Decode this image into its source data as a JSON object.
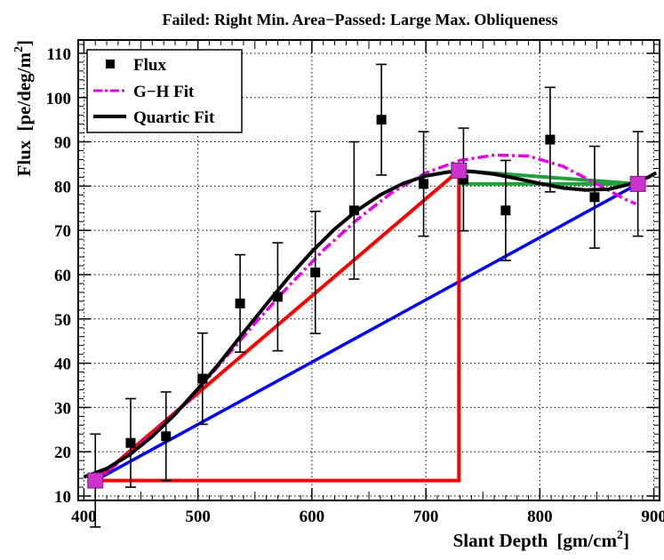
{
  "chart_data": {
    "type": "scatter",
    "title": "Failed: Right Min. Area−Passed: Large Max. Obliqueness",
    "xlabel": "Slant Depth",
    "xlabel_unit": "[gm/cm",
    "xlabel_sup": "2",
    "xlabel_close": "]",
    "ylabel": "Flux",
    "ylabel_unit": "[pe/deg/m",
    "ylabel_sup": "2",
    "ylabel_close": "]",
    "xlim": [
      395,
      905
    ],
    "ylim": [
      9,
      113
    ],
    "xticks": [
      400,
      500,
      600,
      700,
      800,
      900
    ],
    "xtick_labels": [
      "400",
      "500",
      "600",
      "700",
      "800",
      "900"
    ],
    "yticks": [
      10,
      20,
      30,
      40,
      50,
      60,
      70,
      80,
      90,
      100,
      110
    ],
    "ytick_labels": [
      "10",
      "20",
      "30",
      "40",
      "50",
      "60",
      "70",
      "80",
      "90",
      "100",
      "110"
    ],
    "grid": true,
    "legend_position": "top-left",
    "legend": [
      {
        "label": "Flux",
        "style": "marker",
        "color": "#000000"
      },
      {
        "label": "G−H Fit",
        "style": "dashdot",
        "color": "#e600e6"
      },
      {
        "label": "Quartic Fit",
        "style": "line",
        "color": "#000000"
      }
    ],
    "flux_points": [
      {
        "x": 410,
        "y": 13.5,
        "err": 10.5
      },
      {
        "x": 441,
        "y": 22.0,
        "err": 10.0
      },
      {
        "x": 472,
        "y": 23.5,
        "err": 10.0
      },
      {
        "x": 504,
        "y": 36.5,
        "err": 10.3
      },
      {
        "x": 537,
        "y": 53.5,
        "err": 11.0
      },
      {
        "x": 570,
        "y": 55.0,
        "err": 12.2
      },
      {
        "x": 603,
        "y": 60.5,
        "err": 13.8
      },
      {
        "x": 637,
        "y": 74.5,
        "err": 15.5
      },
      {
        "x": 661,
        "y": 95.0,
        "err": 12.5
      },
      {
        "x": 698,
        "y": 80.5,
        "err": 11.8
      },
      {
        "x": 733,
        "y": 81.5,
        "err": 11.6
      },
      {
        "x": 770,
        "y": 74.5,
        "err": 11.3
      },
      {
        "x": 809,
        "y": 90.5,
        "err": 11.8
      },
      {
        "x": 848,
        "y": 77.5,
        "err": 11.5
      },
      {
        "x": 886,
        "y": 80.5,
        "err": 11.8
      }
    ],
    "gh_fit": [
      [
        408,
        13.0
      ],
      [
        430,
        17.5
      ],
      [
        460,
        24.0
      ],
      [
        490,
        31.0
      ],
      [
        520,
        40.0
      ],
      [
        550,
        49.0
      ],
      [
        580,
        57.5
      ],
      [
        610,
        65.5
      ],
      [
        640,
        72.5
      ],
      [
        670,
        78.5
      ],
      [
        700,
        83.0
      ],
      [
        730,
        85.8
      ],
      [
        760,
        87.0
      ],
      [
        790,
        86.8
      ],
      [
        820,
        84.5
      ],
      [
        850,
        80.5
      ],
      [
        875,
        77.0
      ],
      [
        884,
        76.0
      ]
    ],
    "quartic_fit": [
      [
        400,
        14.3
      ],
      [
        420,
        16.2
      ],
      [
        440,
        19.3
      ],
      [
        460,
        23.5
      ],
      [
        480,
        28.5
      ],
      [
        500,
        34.2
      ],
      [
        520,
        40.4
      ],
      [
        540,
        46.9
      ],
      [
        560,
        53.3
      ],
      [
        580,
        59.5
      ],
      [
        600,
        65.2
      ],
      [
        620,
        70.3
      ],
      [
        640,
        74.6
      ],
      [
        660,
        78.0
      ],
      [
        680,
        80.6
      ],
      [
        700,
        82.3
      ],
      [
        720,
        83.2
      ],
      [
        740,
        83.3
      ],
      [
        760,
        82.7
      ],
      [
        780,
        81.7
      ],
      [
        800,
        80.6
      ],
      [
        820,
        79.6
      ],
      [
        840,
        79.1
      ],
      [
        860,
        79.3
      ],
      [
        880,
        80.5
      ],
      [
        895,
        82.0
      ],
      [
        902,
        83.0
      ]
    ],
    "triangle_red": [
      [
        410,
        13.5
      ],
      [
        729,
        13.5
      ],
      [
        729,
        83.5
      ],
      [
        410,
        13.5
      ]
    ],
    "line_blue": [
      [
        410,
        13.5
      ],
      [
        886,
        80.5
      ]
    ],
    "green_lines": [
      [
        [
          729,
          83.5
        ],
        [
          886,
          80.5
        ]
      ],
      [
        [
          729,
          80.5
        ],
        [
          886,
          80.5
        ]
      ]
    ],
    "highlight_points": [
      {
        "x": 410,
        "y": 13.5
      },
      {
        "x": 729,
        "y": 83.5
      },
      {
        "x": 886,
        "y": 80.5
      }
    ],
    "colors": {
      "triangle": "#ff0000",
      "blue_line": "#0000ff",
      "green_line": "#22a03c",
      "highlight": "#cc33cc",
      "gh_fit": "#e600e6",
      "quartic": "#000000",
      "points": "#000000"
    }
  }
}
